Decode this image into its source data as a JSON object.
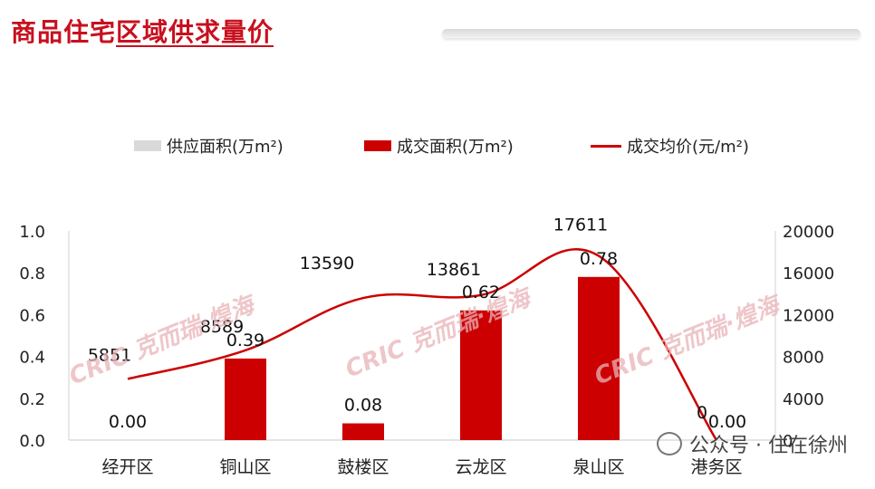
{
  "header": {
    "title_part1": "商品住宅",
    "title_part2": "区域供求量价"
  },
  "watermark": {
    "brand": "CRIC",
    "text": "克而瑞·煌海",
    "footer": "公众号 · 住在徐州"
  },
  "colors": {
    "supply": "#d9d9d9",
    "deal": "#cc0000",
    "price": "#cc0000",
    "title": "#c8101e"
  },
  "chart_data": {
    "type": "bar",
    "categories": [
      "经开区",
      "铜山区",
      "鼓楼区",
      "云龙区",
      "泉山区",
      "港务区"
    ],
    "series": [
      {
        "name": "供应面积(万m²)",
        "type": "bar",
        "values": [
          0,
          0,
          0,
          0,
          0,
          0
        ]
      },
      {
        "name": "成交面积(万m²)",
        "type": "bar",
        "values": [
          0.0,
          0.39,
          0.08,
          0.62,
          0.78,
          0.0
        ]
      },
      {
        "name": "成交均价(元/m²)",
        "type": "line",
        "axis": "right",
        "values": [
          5851,
          8589,
          13590,
          13861,
          17611,
          0
        ]
      }
    ],
    "bar_labels": [
      "0.00",
      "0.39",
      "0.08",
      "0.62",
      "0.78",
      "0.00"
    ],
    "line_labels": [
      "5851",
      "8589",
      "13590",
      "13861",
      "17611",
      "0"
    ],
    "y_left": {
      "range": [
        0,
        1.0
      ],
      "ticks": [
        "0.0",
        "0.2",
        "0.4",
        "0.6",
        "0.8",
        "1.0"
      ]
    },
    "y_right": {
      "range": [
        0,
        20000
      ],
      "ticks": [
        "0",
        "4000",
        "8000",
        "12000",
        "16000",
        "20000"
      ]
    },
    "legend_position": "top",
    "grid": false
  }
}
